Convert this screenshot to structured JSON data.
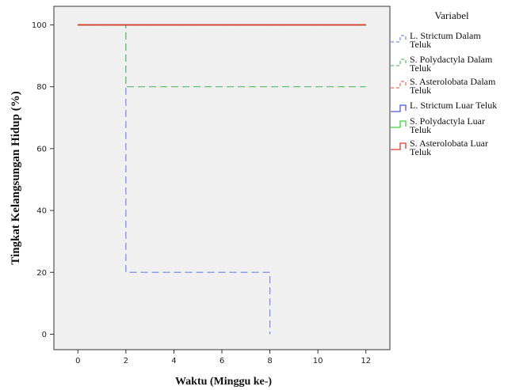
{
  "chart_data": {
    "type": "line",
    "step": true,
    "xlabel": "Waktu (Minggu ke-)",
    "ylabel": "Tingkat Kelangsungan Hidup (%)",
    "xlim": [
      -1,
      13
    ],
    "ylim": [
      -5,
      106
    ],
    "xticks": [
      0,
      2,
      4,
      6,
      8,
      10,
      12
    ],
    "yticks": [
      0,
      20,
      40,
      60,
      80,
      100
    ],
    "grid": false,
    "background": "#f0f0f0",
    "legend": {
      "title": "Variabel",
      "position": "right",
      "entries": [
        {
          "lines": [
            "L. Strictum Dalam",
            "Teluk"
          ],
          "color": "#7b8fe8",
          "dashed": true
        },
        {
          "lines": [
            "S. Polydactyla Dalam",
            "Teluk"
          ],
          "color": "#5fc46a",
          "dashed": true
        },
        {
          "lines": [
            "S. Asterolobata Dalam",
            "Teluk"
          ],
          "color": "#ef6b5e",
          "dashed": true
        },
        {
          "lines": [
            "L. Strictum Luar Teluk"
          ],
          "color": "#4a56e0",
          "dashed": false
        },
        {
          "lines": [
            "S. Polydactyla Luar",
            "Teluk"
          ],
          "color": "#3fd43f",
          "dashed": false
        },
        {
          "lines": [
            "S. Asterolobata Luar",
            "Teluk"
          ],
          "color": "#e8342a",
          "dashed": false
        }
      ]
    },
    "series": [
      {
        "name": "L. Strictum Dalam Teluk",
        "color": "#7b8fe8",
        "dashed": true,
        "x": [
          0,
          2,
          2,
          8,
          8
        ],
        "y": [
          100,
          100,
          20,
          20,
          0
        ]
      },
      {
        "name": "S. Polydactyla Dalam Teluk",
        "color": "#5fc46a",
        "dashed": true,
        "x": [
          0,
          2,
          2,
          12
        ],
        "y": [
          100,
          100,
          80,
          80
        ]
      },
      {
        "name": "S. Asterolobata Dalam Teluk",
        "color": "#ef6b5e",
        "dashed": true,
        "x": [
          0,
          12
        ],
        "y": [
          100,
          100
        ]
      },
      {
        "name": "L. Strictum Luar Teluk",
        "color": "#4a56e0",
        "dashed": false,
        "x": [
          0,
          12
        ],
        "y": [
          100,
          100
        ]
      },
      {
        "name": "S. Polydactyla Luar Teluk",
        "color": "#3fd43f",
        "dashed": false,
        "x": [
          0,
          12
        ],
        "y": [
          100,
          100
        ]
      },
      {
        "name": "S. Asterolobata Luar Teluk",
        "color": "#e8342a",
        "dashed": false,
        "x": [
          0,
          12
        ],
        "y": [
          100,
          100
        ]
      }
    ]
  }
}
